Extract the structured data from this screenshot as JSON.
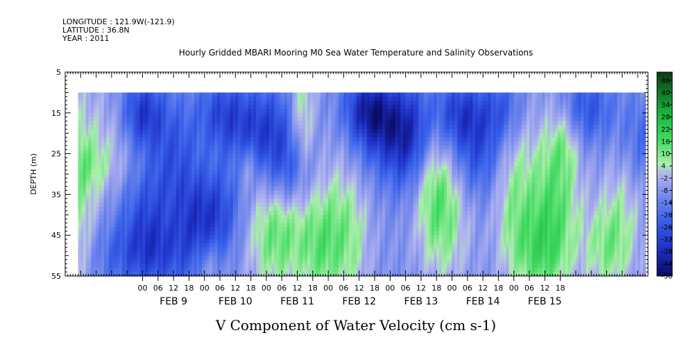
{
  "header": {
    "longitude": "LONGITUDE : 121.9W(-121.9)",
    "latitude": "LATITUDE : 36.8N",
    "year": "YEAR : 2011"
  },
  "chart_data": {
    "type": "heatmap",
    "title": "Hourly Gridded MBARI Mooring M0 Sea Water Temperature and Salinity Observations",
    "xlabel": "V Component of Water Velocity (cm s-1)",
    "ylabel": "DEPTH (m)",
    "y_axis": {
      "range": [
        5,
        55
      ],
      "inverted": true,
      "ticks": [
        5,
        15,
        25,
        35,
        45,
        55
      ],
      "data_top": 10
    },
    "x_axis": {
      "hour_ticks": [
        "00",
        "06",
        "12",
        "18",
        "00",
        "06",
        "12",
        "18",
        "00",
        "06",
        "12",
        "18",
        "00",
        "06",
        "12",
        "18",
        "00",
        "06",
        "12",
        "18",
        "00",
        "06",
        "12",
        "18",
        "00",
        "06",
        "12",
        "18"
      ],
      "day_labels": [
        "FEB  9",
        "FEB 10",
        "FEB 11",
        "FEB 12",
        "FEB 13",
        "FEB 14",
        "FEB 15"
      ],
      "range_hours": [
        -30,
        196
      ],
      "data_start_hour": -25
    },
    "colorbar": {
      "levels": [
        "46",
        "40",
        "34",
        "28",
        "22",
        "16",
        "10",
        "4",
        "-2",
        "-8",
        "-14",
        "-20",
        "-26",
        "-32",
        "-38",
        "-44",
        "-50"
      ],
      "range": [
        -50,
        50
      ],
      "colors": {
        "darkest_green": "#0b3d14",
        "green": "#2ad24a",
        "light_green": "#a6f0a6",
        "lavender": "#b0b4f0",
        "blue": "#3a5ae6",
        "navy": "#0a0a64"
      }
    },
    "grid": false
  }
}
